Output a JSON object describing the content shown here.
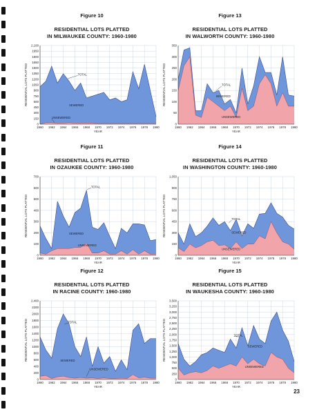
{
  "page_number": "23",
  "colors": {
    "sewered": "#6f96da",
    "unsewered": "#f2a4ab",
    "grid": "#b9c7d6",
    "outline": "#3a4d8f"
  },
  "chart_data": [
    {
      "type": "area",
      "figure": "Figure 10",
      "title_line1": "RESIDENTIAL LOTS PLATTED",
      "title_line2": "IN MILWAUKEE COUNTY: 1960-1980",
      "ylabel": "RESIDENTIAL LOTS PLATTED",
      "xlabel": "YEAR",
      "x": [
        1960,
        1961,
        1962,
        1963,
        1964,
        1965,
        1966,
        1967,
        1968,
        1969,
        1970,
        1971,
        1972,
        1973,
        1974,
        1975,
        1976,
        1977,
        1978,
        1979,
        1980
      ],
      "xticks": [
        "1960",
        "1962",
        "1964",
        "1966",
        "1968",
        "1970",
        "1972",
        "1974",
        "1976",
        "1978",
        "1980"
      ],
      "ylim": [
        0,
        2100
      ],
      "yticks": [
        0,
        150,
        300,
        450,
        600,
        750,
        900,
        1050,
        1200,
        1350,
        1500,
        1650,
        1800,
        1950,
        2100
      ],
      "ytick_labels": [
        "0",
        "150",
        "300",
        "450",
        "600",
        "750",
        "900",
        "1050",
        "1200",
        "1350",
        "1500",
        "1650",
        "1800",
        "1950",
        "2,100"
      ],
      "series": [
        {
          "name": "TOTAL",
          "values": [
            1000,
            1150,
            1550,
            1100,
            1350,
            1150,
            900,
            1100,
            700,
            750,
            800,
            850,
            650,
            700,
            600,
            650,
            1400,
            950,
            1600,
            900,
            200
          ]
        },
        {
          "name": "UNSEWERED",
          "values": [
            0,
            40,
            40,
            30,
            30,
            40,
            30,
            30,
            30,
            30,
            20,
            20,
            20,
            20,
            20,
            20,
            20,
            20,
            20,
            20,
            20
          ]
        }
      ],
      "labels": [
        {
          "text": "TOTAL",
          "x": 1966.5,
          "y": 1300,
          "lx": 1964.8,
          "ly": 1220
        },
        {
          "text": "SEWERED",
          "x": 1965,
          "y": 480
        },
        {
          "text": "UNSEWERED",
          "x": 1962,
          "y": 145,
          "lx": 1962.5,
          "ly": 45
        }
      ]
    },
    {
      "type": "area",
      "figure": "Figure 13",
      "title_line1": "RESIDENTIAL LOTS PLATTED",
      "title_line2": "IN WALWORTH COUNTY: 1960-1980",
      "ylabel": "RESIDENTIAL LOTS PLATTED",
      "xlabel": "YEAR",
      "x": [
        1960,
        1961,
        1962,
        1963,
        1964,
        1965,
        1966,
        1967,
        1968,
        1969,
        1970,
        1971,
        1972,
        1973,
        1974,
        1975,
        1976,
        1977,
        1978,
        1979,
        1980
      ],
      "xticks": [
        "1960",
        "1962",
        "1964",
        "1966",
        "1968",
        "1970",
        "1972",
        "1974",
        "1976",
        "1978",
        "1980"
      ],
      "ylim": [
        0,
        350
      ],
      "yticks": [
        0,
        50,
        100,
        150,
        200,
        250,
        300,
        350
      ],
      "ytick_labels": [
        "0",
        "50",
        "100",
        "150",
        "200",
        "250",
        "300",
        "350"
      ],
      "series": [
        {
          "name": "TOTAL",
          "values": [
            200,
            330,
            340,
            60,
            60,
            180,
            140,
            150,
            90,
            110,
            50,
            250,
            90,
            170,
            300,
            230,
            230,
            130,
            300,
            130,
            125
          ]
        },
        {
          "name": "UNSEWERED",
          "values": [
            150,
            260,
            300,
            40,
            30,
            120,
            100,
            80,
            60,
            80,
            30,
            160,
            60,
            80,
            180,
            220,
            180,
            80,
            140,
            80,
            80
          ]
        }
      ],
      "labels": [
        {
          "text": "TOTAL",
          "x": 1967.5,
          "y": 170,
          "lx": 1966.5,
          "ly": 148
        },
        {
          "text": "SEWERED",
          "x": 1966.5,
          "y": 120
        },
        {
          "text": "UNSEWERED",
          "x": 1967.5,
          "y": 28
        }
      ]
    },
    {
      "type": "area",
      "figure": "Figure 11",
      "title_line1": "RESIDENTIAL LOTS PLATTED",
      "title_line2": "IN OZAUKEE COUNTY: 1960-1980",
      "ylabel": "RESIDENTIAL LOTS PLATTED",
      "xlabel": "YEAR",
      "x": [
        1960,
        1961,
        1962,
        1963,
        1964,
        1965,
        1966,
        1967,
        1968,
        1969,
        1970,
        1971,
        1972,
        1973,
        1974,
        1975,
        1976,
        1977,
        1978,
        1979,
        1980
      ],
      "xticks": [
        "1960",
        "1962",
        "1964",
        "1966",
        "1968",
        "1970",
        "1972",
        "1974",
        "1976",
        "1978",
        "1980"
      ],
      "ylim": [
        0,
        700
      ],
      "yticks": [
        0,
        100,
        200,
        300,
        400,
        500,
        600,
        700
      ],
      "ytick_labels": [
        "0",
        "100",
        "200",
        "300",
        "400",
        "500",
        "600",
        "700"
      ],
      "series": [
        {
          "name": "TOTAL",
          "values": [
            260,
            150,
            60,
            480,
            350,
            250,
            380,
            420,
            580,
            250,
            230,
            290,
            170,
            60,
            240,
            200,
            280,
            280,
            270,
            130,
            140
          ]
        },
        {
          "name": "UNSEWERED",
          "values": [
            20,
            10,
            40,
            60,
            60,
            60,
            70,
            70,
            110,
            20,
            20,
            40,
            10,
            10,
            40,
            10,
            50,
            10,
            40,
            10,
            10
          ]
        }
      ],
      "labels": [
        {
          "text": "TOTAL",
          "x": 1968.8,
          "y": 600,
          "lx": 1968.1,
          "ly": 585
        },
        {
          "text": "SEWERED",
          "x": 1965,
          "y": 185
        },
        {
          "text": "UNSEWERED",
          "x": 1966.5,
          "y": 80
        }
      ]
    },
    {
      "type": "area",
      "figure": "Figure 14",
      "title_line1": "RESIDENTIAL LOTS PLATTED",
      "title_line2": "IN WASHINGTON COUNTY: 1960-1980",
      "ylabel": "RESIDENTIAL LOTS PLATTED",
      "xlabel": "YEAR",
      "x": [
        1960,
        1961,
        1962,
        1963,
        1964,
        1965,
        1966,
        1967,
        1968,
        1969,
        1970,
        1971,
        1972,
        1973,
        1974,
        1975,
        1976,
        1977,
        1978,
        1979,
        1980
      ],
      "xticks": [
        "1960",
        "1962",
        "1964",
        "1966",
        "1968",
        "1970",
        "1972",
        "1974",
        "1976",
        "1978",
        "1980"
      ],
      "ylim": [
        0,
        1050
      ],
      "yticks": [
        0,
        150,
        300,
        450,
        600,
        750,
        900,
        1050
      ],
      "ytick_labels": [
        "0",
        "150",
        "300",
        "450",
        "600",
        "750",
        "900",
        "1,050"
      ],
      "series": [
        {
          "name": "TOTAL",
          "values": [
            300,
            150,
            420,
            250,
            300,
            390,
            500,
            400,
            450,
            330,
            480,
            260,
            420,
            360,
            550,
            560,
            700,
            560,
            510,
            400,
            350
          ]
        },
        {
          "name": "UNSEWERED",
          "values": [
            100,
            50,
            150,
            100,
            130,
            180,
            200,
            130,
            140,
            90,
            180,
            90,
            150,
            150,
            260,
            220,
            450,
            300,
            180,
            150,
            80
          ]
        }
      ],
      "labels": [
        {
          "text": "TOTAL",
          "x": 1969.2,
          "y": 470,
          "lx": 1968.7,
          "ly": 430
        },
        {
          "text": "SEWERED",
          "x": 1969.2,
          "y": 290
        },
        {
          "text": "UNSEWERED",
          "x": 1967.5,
          "y": 70
        }
      ]
    },
    {
      "type": "area",
      "figure": "Figure 12",
      "title_line1": "RESIDENTIAL LOTS PLATTED",
      "title_line2": "IN RACINE COUNTY: 1960-1980",
      "ylabel": "RESIDENTIAL LOTS PLATTED",
      "xlabel": "YEAR",
      "x": [
        1960,
        1961,
        1962,
        1963,
        1964,
        1965,
        1966,
        1967,
        1968,
        1969,
        1970,
        1971,
        1972,
        1973,
        1974,
        1975,
        1976,
        1977,
        1978,
        1979,
        1980
      ],
      "xticks": [
        "1960",
        "1962",
        "1964",
        "1966",
        "1968",
        "1970",
        "1972",
        "1974",
        "1976",
        "1978",
        "1980"
      ],
      "ylim": [
        0,
        2400
      ],
      "yticks": [
        0,
        200,
        400,
        600,
        800,
        1000,
        1200,
        1400,
        1600,
        1800,
        2000,
        2200,
        2400
      ],
      "ytick_labels": [
        "0",
        "200",
        "400",
        "600",
        "800",
        "1000",
        "1200",
        "1400",
        "1600",
        "1800",
        "2000",
        "2200",
        "2,400"
      ],
      "series": [
        {
          "name": "TOTAL",
          "values": [
            1300,
            900,
            650,
            1550,
            2000,
            1700,
            1000,
            700,
            1300,
            400,
            1000,
            500,
            700,
            250,
            600,
            300,
            1500,
            1700,
            1100,
            1250,
            1250
          ]
        },
        {
          "name": "UNSEWERED",
          "values": [
            100,
            120,
            30,
            80,
            100,
            60,
            40,
            60,
            40,
            50,
            30,
            50,
            30,
            30,
            40,
            30,
            150,
            50,
            70,
            40,
            40
          ]
        }
      ],
      "labels": [
        {
          "text": "TOTAL",
          "x": 1964.8,
          "y": 1720,
          "lx": 1964.2,
          "ly": 1690
        },
        {
          "text": "SEWERED",
          "x": 1963.5,
          "y": 550
        },
        {
          "text": "UNSEWERED",
          "x": 1968.5,
          "y": 280,
          "lx": 1968,
          "ly": 90
        }
      ]
    },
    {
      "type": "area",
      "figure": "Figure 15",
      "title_line1": "RESIDENTIAL LOTS PLATTED",
      "title_line2": "IN WAUKESHA COUNTY: 1960-1980",
      "ylabel": "RESIDENTIAL LOTS PLATTED",
      "xlabel": "YEAR",
      "x": [
        1960,
        1961,
        1962,
        1963,
        1964,
        1965,
        1966,
        1967,
        1968,
        1969,
        1970,
        1971,
        1972,
        1973,
        1974,
        1975,
        1976,
        1977,
        1978,
        1979,
        1980
      ],
      "xticks": [
        "1960",
        "1962",
        "1964",
        "1966",
        "1968",
        "1970",
        "1972",
        "1974",
        "1976",
        "1978",
        "1980"
      ],
      "ylim": [
        0,
        3500
      ],
      "yticks": [
        0,
        250,
        500,
        750,
        1000,
        1250,
        1500,
        1750,
        2000,
        2250,
        2500,
        2750,
        3000,
        3250,
        3500
      ],
      "ytick_labels": [
        "0",
        "250",
        "500",
        "750",
        "1,000",
        "1,250",
        "1,500",
        "1,750",
        "2,000",
        "2,250",
        "2,500",
        "2,750",
        "3,000",
        "3,250",
        "3,500"
      ],
      "series": [
        {
          "name": "TOTAL",
          "values": [
            1600,
            900,
            600,
            800,
            1100,
            1200,
            1400,
            1300,
            1200,
            1800,
            1400,
            2300,
            1500,
            2400,
            1800,
            1600,
            2600,
            3000,
            2200,
            1700,
            800
          ]
        },
        {
          "name": "UNSEWERED",
          "values": [
            500,
            200,
            300,
            350,
            300,
            400,
            600,
            500,
            600,
            700,
            600,
            1000,
            700,
            900,
            700,
            600,
            1200,
            1000,
            900,
            500,
            300
          ]
        }
      ],
      "labels": [
        {
          "text": "TOTAL",
          "x": 1969.6,
          "y": 1920,
          "lx": 1970.5,
          "ly": 1900
        },
        {
          "text": "SEWERED",
          "x": 1972,
          "y": 1430
        },
        {
          "text": "UNSEWERED",
          "x": 1971.5,
          "y": 520
        }
      ]
    }
  ]
}
